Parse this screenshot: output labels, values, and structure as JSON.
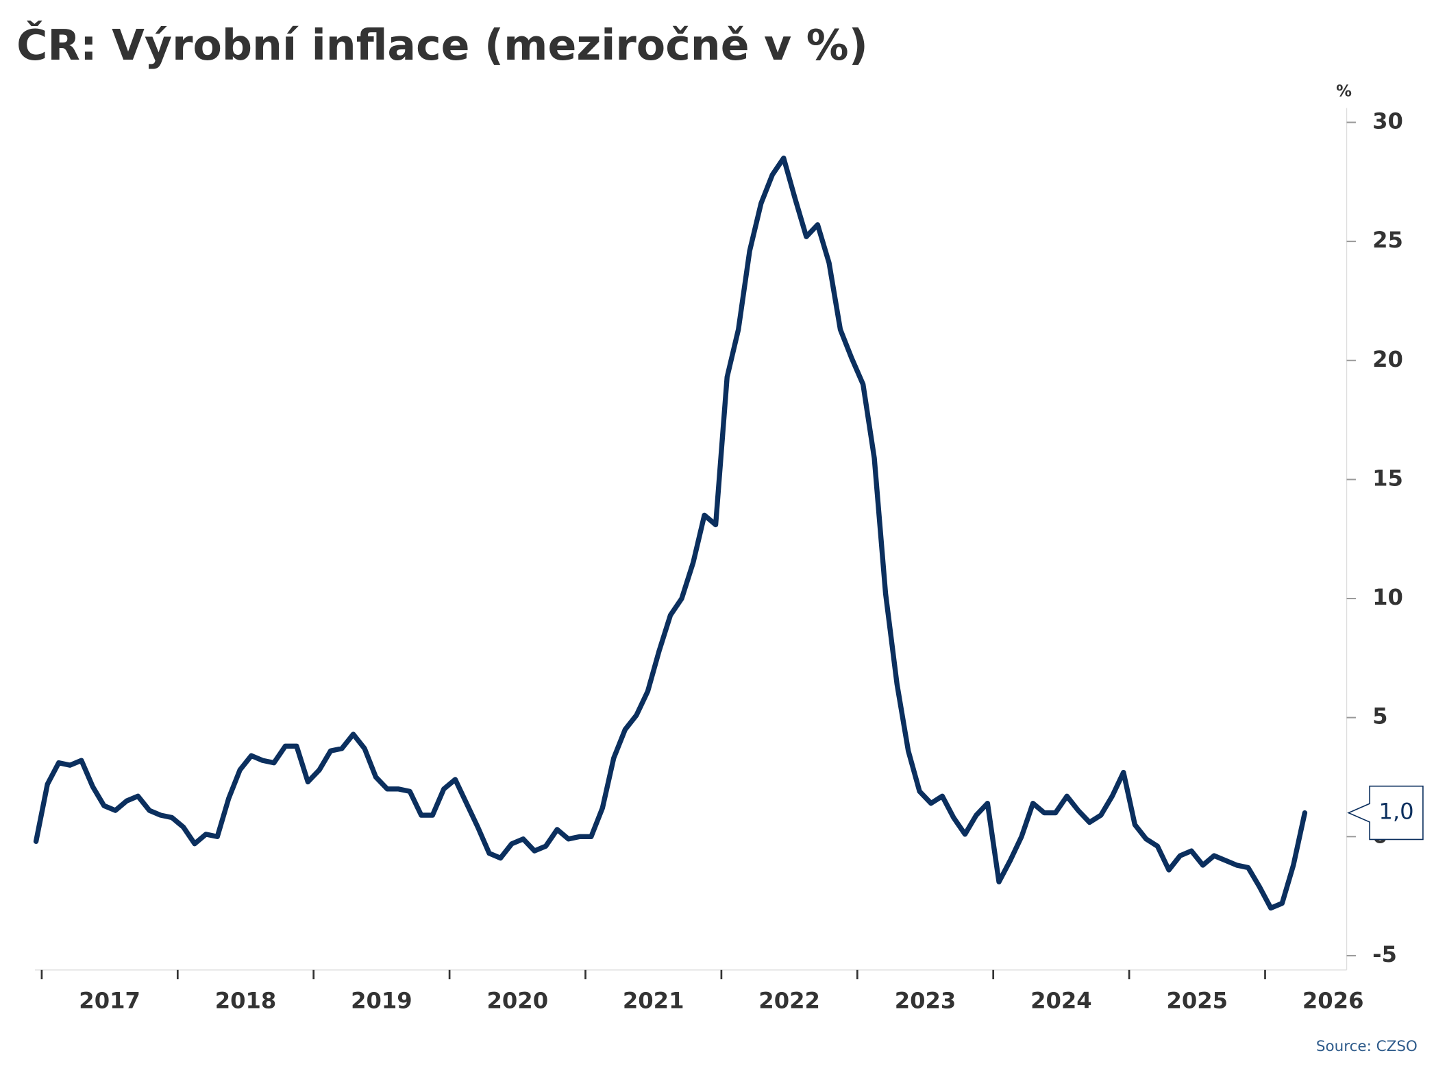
{
  "chart_data": {
    "type": "line",
    "title": "ČR: Výrobní inflace (meziročně v %)",
    "y_unit": "%",
    "source": "Source: CZSO",
    "annotation": "1,0",
    "x": [
      2016.958,
      2017.042,
      2017.125,
      2017.208,
      2017.292,
      2017.375,
      2017.458,
      2017.542,
      2017.625,
      2017.708,
      2017.792,
      2017.875,
      2017.958,
      2018.042,
      2018.125,
      2018.208,
      2018.292,
      2018.375,
      2018.458,
      2018.542,
      2018.625,
      2018.708,
      2018.792,
      2018.875,
      2018.958,
      2019.042,
      2019.125,
      2019.208,
      2019.292,
      2019.375,
      2019.458,
      2019.542,
      2019.625,
      2019.708,
      2019.792,
      2019.875,
      2019.958,
      2020.042,
      2020.125,
      2020.208,
      2020.292,
      2020.375,
      2020.458,
      2020.542,
      2020.625,
      2020.708,
      2020.792,
      2020.875,
      2020.958,
      2021.042,
      2021.125,
      2021.208,
      2021.292,
      2021.375,
      2021.458,
      2021.542,
      2021.625,
      2021.708,
      2021.792,
      2021.875,
      2021.958,
      2022.042,
      2022.125,
      2022.208,
      2022.292,
      2022.375,
      2022.458,
      2022.542,
      2022.625,
      2022.708,
      2022.792,
      2022.875,
      2022.958,
      2023.042,
      2023.125,
      2023.208,
      2023.292,
      2023.375,
      2023.458,
      2023.542,
      2023.625,
      2023.708,
      2023.792,
      2023.875,
      2023.958,
      2024.042,
      2024.125,
      2024.208,
      2024.292,
      2024.375,
      2024.458,
      2024.542,
      2024.625,
      2024.708,
      2024.792,
      2024.875,
      2024.958,
      2025.042,
      2025.125,
      2025.208,
      2025.292,
      2025.375,
      2025.458,
      2025.542,
      2025.625,
      2025.708,
      2025.792,
      2025.875,
      2025.958,
      2026.042,
      2026.125,
      2026.208,
      2026.292
    ],
    "series": [
      {
        "name": "Výrobní inflace",
        "color": "#0b2f5e",
        "values": [
          -0.2,
          2.2,
          3.1,
          3.0,
          3.2,
          2.1,
          1.3,
          1.1,
          1.5,
          1.7,
          1.1,
          0.9,
          0.8,
          0.4,
          -0.3,
          0.1,
          0.0,
          1.6,
          2.8,
          3.4,
          3.2,
          3.1,
          3.8,
          3.8,
          2.3,
          2.8,
          3.6,
          3.7,
          4.3,
          3.7,
          2.5,
          2.0,
          2.0,
          1.9,
          0.9,
          0.9,
          2.0,
          2.4,
          1.4,
          0.4,
          -0.7,
          -0.9,
          -0.3,
          -0.1,
          -0.6,
          -0.4,
          0.3,
          -0.1,
          0.0,
          0.0,
          1.2,
          3.3,
          4.5,
          5.1,
          6.1,
          7.8,
          9.3,
          10.0,
          11.5,
          13.5,
          13.1,
          19.3,
          21.3,
          24.6,
          26.6,
          27.8,
          28.5,
          26.8,
          25.2,
          25.7,
          24.1,
          21.3,
          20.1,
          19.0,
          15.9,
          10.2,
          6.4,
          3.6,
          1.9,
          1.4,
          1.7,
          0.8,
          0.1,
          0.9,
          1.4,
          -1.9,
          -1.0,
          0.0,
          1.4,
          1.0,
          1.0,
          1.7,
          1.1,
          0.6,
          0.9,
          1.7,
          2.7,
          0.5,
          -0.1,
          -0.4,
          -1.4,
          -0.8,
          -0.6,
          -1.2,
          -0.8,
          -1.0,
          -1.2,
          -1.3,
          -2.1,
          -3.0,
          -2.8,
          -1.2,
          1.0
        ]
      }
    ],
    "xlim": [
      2016.95,
      2026.6
    ],
    "xticks": [
      2017,
      2018,
      2019,
      2020,
      2021,
      2022,
      2023,
      2024,
      2025,
      2026
    ],
    "ylim": [
      -5.6,
      30.6
    ],
    "yticks": [
      -5,
      0,
      5,
      10,
      15,
      20,
      25,
      30
    ],
    "grid": false
  }
}
